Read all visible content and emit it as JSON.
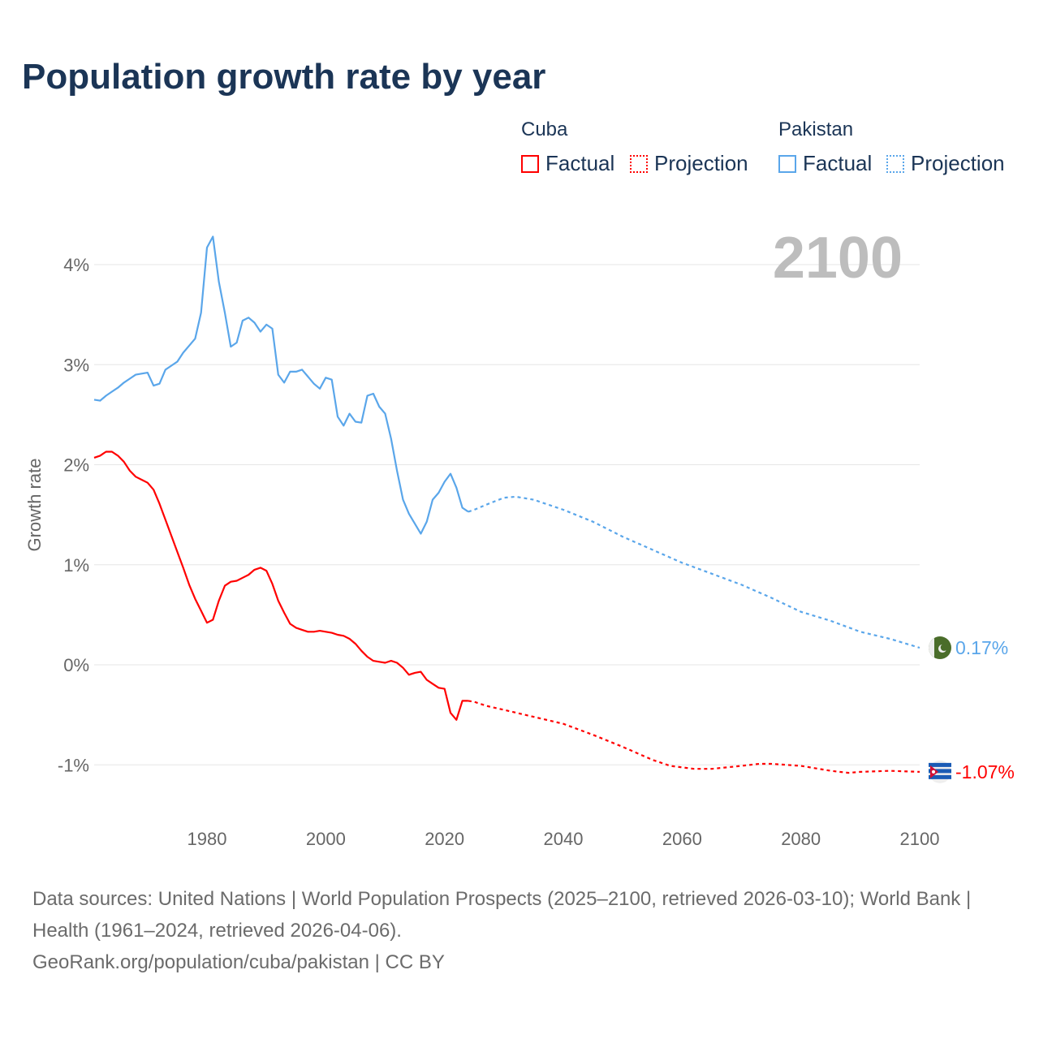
{
  "title": "Population growth rate by year",
  "legend": {
    "groups": [
      {
        "name": "Cuba",
        "color": "#ff0000",
        "items": [
          "Factual",
          "Projection"
        ]
      },
      {
        "name": "Pakistan",
        "color": "#5aa6ea",
        "items": [
          "Factual",
          "Projection"
        ]
      }
    ]
  },
  "year_label": "2100",
  "footer": {
    "sources": "Data sources: United Nations | World Population Prospects (2025–2100, retrieved 2026-03-10); World Bank | Health (1961–2024, retrieved 2026-04-06).",
    "credit": "GeoRank.org/population/cuba/pakistan | CC BY"
  },
  "chart_data": {
    "type": "line",
    "title": "Population growth rate by year",
    "xlabel": "",
    "ylabel": "Growth rate",
    "xlim": [
      1961,
      2100
    ],
    "ylim": [
      -1.5,
      4.5
    ],
    "xticks": [
      1980,
      2000,
      2020,
      2040,
      2060,
      2080,
      2100
    ],
    "xtick_labels": [
      "1980",
      "2000",
      "2020",
      "2040",
      "2060",
      "2080",
      "2100"
    ],
    "yticks": [
      -1,
      0,
      1,
      2,
      3,
      4
    ],
    "ytick_labels": [
      "-1%",
      "0%",
      "1%",
      "2%",
      "3%",
      "4%"
    ],
    "grid": true,
    "legend_position": "top-right",
    "series": [
      {
        "name": "Pakistan",
        "color": "#5aa6ea",
        "end_label": "0.17%",
        "factual": {
          "x": [
            1961,
            1962,
            1963,
            1964,
            1965,
            1966,
            1967,
            1968,
            1969,
            1970,
            1971,
            1972,
            1973,
            1974,
            1975,
            1976,
            1977,
            1978,
            1979,
            1980,
            1981,
            1982,
            1983,
            1984,
            1985,
            1986,
            1987,
            1988,
            1989,
            1990,
            1991,
            1992,
            1993,
            1994,
            1995,
            1996,
            1997,
            1998,
            1999,
            2000,
            2001,
            2002,
            2003,
            2004,
            2005,
            2006,
            2007,
            2008,
            2009,
            2010,
            2011,
            2012,
            2013,
            2014,
            2015,
            2016,
            2017,
            2018,
            2019,
            2020,
            2021,
            2022,
            2023,
            2024
          ],
          "y": [
            2.65,
            2.64,
            2.69,
            2.73,
            2.77,
            2.82,
            2.86,
            2.9,
            2.91,
            2.92,
            2.79,
            2.81,
            2.95,
            2.99,
            3.03,
            3.12,
            3.19,
            3.26,
            3.52,
            4.17,
            4.28,
            3.83,
            3.52,
            3.18,
            3.22,
            3.44,
            3.47,
            3.42,
            3.33,
            3.4,
            3.36,
            2.9,
            2.82,
            2.93,
            2.93,
            2.95,
            2.88,
            2.81,
            2.76,
            2.87,
            2.85,
            2.48,
            2.39,
            2.51,
            2.43,
            2.42,
            2.69,
            2.71,
            2.58,
            2.51,
            2.26,
            1.94,
            1.65,
            1.51,
            1.41,
            1.31,
            1.43,
            1.65,
            1.72,
            1.83,
            1.91,
            1.77,
            1.57,
            1.53
          ]
        },
        "projection": {
          "x": [
            2024,
            2025,
            2027,
            2030,
            2032,
            2035,
            2040,
            2045,
            2050,
            2055,
            2060,
            2065,
            2070,
            2075,
            2080,
            2085,
            2090,
            2095,
            2100
          ],
          "y": [
            1.53,
            1.55,
            1.6,
            1.67,
            1.68,
            1.65,
            1.55,
            1.43,
            1.28,
            1.15,
            1.02,
            0.91,
            0.8,
            0.67,
            0.53,
            0.44,
            0.33,
            0.26,
            0.17
          ]
        }
      },
      {
        "name": "Cuba",
        "color": "#ff0000",
        "end_label": "-1.07%",
        "factual": {
          "x": [
            1961,
            1962,
            1963,
            1964,
            1965,
            1966,
            1967,
            1968,
            1969,
            1970,
            1971,
            1972,
            1973,
            1974,
            1975,
            1976,
            1977,
            1978,
            1979,
            1980,
            1981,
            1982,
            1983,
            1984,
            1985,
            1986,
            1987,
            1988,
            1989,
            1990,
            1991,
            1992,
            1993,
            1994,
            1995,
            1996,
            1997,
            1998,
            1999,
            2000,
            2001,
            2002,
            2003,
            2004,
            2005,
            2006,
            2007,
            2008,
            2009,
            2010,
            2011,
            2012,
            2013,
            2014,
            2015,
            2016,
            2017,
            2018,
            2019,
            2020,
            2021,
            2022,
            2023,
            2024
          ],
          "y": [
            2.07,
            2.09,
            2.13,
            2.13,
            2.09,
            2.03,
            1.94,
            1.88,
            1.85,
            1.82,
            1.75,
            1.61,
            1.45,
            1.29,
            1.13,
            0.97,
            0.8,
            0.66,
            0.54,
            0.42,
            0.45,
            0.64,
            0.79,
            0.83,
            0.84,
            0.87,
            0.9,
            0.95,
            0.97,
            0.94,
            0.81,
            0.64,
            0.52,
            0.41,
            0.37,
            0.35,
            0.33,
            0.33,
            0.34,
            0.33,
            0.32,
            0.3,
            0.29,
            0.26,
            0.21,
            0.14,
            0.08,
            0.04,
            0.03,
            0.02,
            0.04,
            0.02,
            -0.03,
            -0.1,
            -0.08,
            -0.07,
            -0.15,
            -0.19,
            -0.23,
            -0.24,
            -0.48,
            -0.55,
            -0.36,
            -0.36
          ]
        },
        "projection": {
          "x": [
            2024,
            2025,
            2027,
            2030,
            2035,
            2040,
            2045,
            2050,
            2055,
            2058,
            2062,
            2065,
            2070,
            2073,
            2075,
            2080,
            2085,
            2088,
            2090,
            2095,
            2100
          ],
          "y": [
            -0.36,
            -0.37,
            -0.41,
            -0.45,
            -0.52,
            -0.59,
            -0.7,
            -0.82,
            -0.95,
            -1.01,
            -1.04,
            -1.04,
            -1.01,
            -0.99,
            -0.99,
            -1.01,
            -1.06,
            -1.08,
            -1.07,
            -1.06,
            -1.07
          ]
        }
      }
    ]
  }
}
